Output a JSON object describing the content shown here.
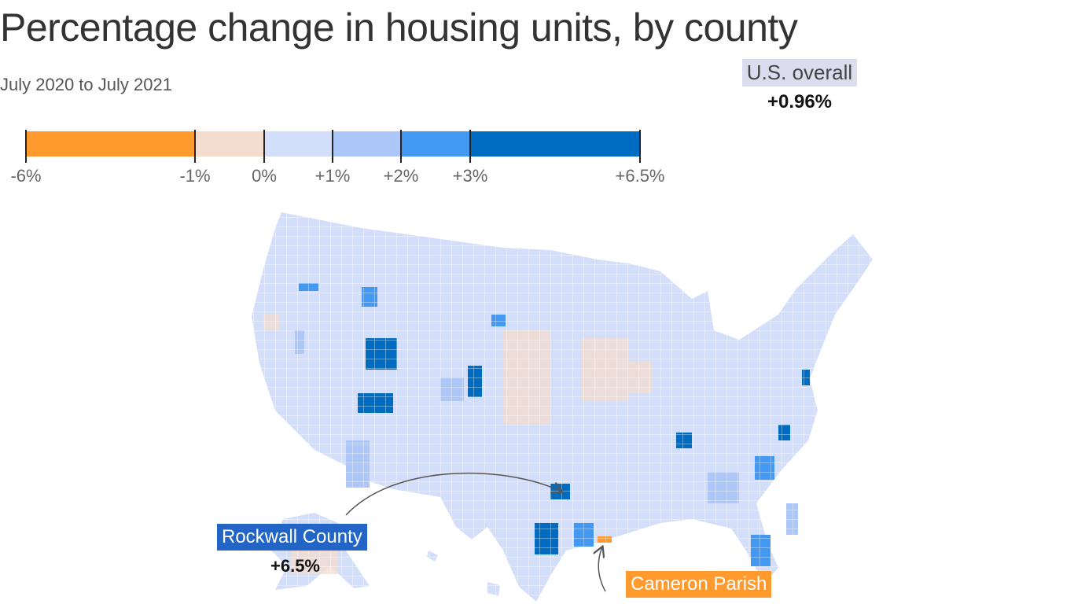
{
  "title": "Percentage change in housing units, by county",
  "subtitle": "July 2020 to July 2021",
  "us_overall": {
    "label": "U.S. overall",
    "value": "+0.96%"
  },
  "legend": {
    "bins": [
      {
        "from": -6,
        "to": -1,
        "color": "#ff9a2e"
      },
      {
        "from": -1,
        "to": 0,
        "color": "#f4dccf"
      },
      {
        "from": 0,
        "to": 1,
        "color": "#d3defa"
      },
      {
        "from": 1,
        "to": 2,
        "color": "#adc8f8"
      },
      {
        "from": 2,
        "to": 3,
        "color": "#4399f2"
      },
      {
        "from": 3,
        "to": 6.5,
        "color": "#006cc1"
      }
    ],
    "tick_labels": [
      "-6%",
      "-1%",
      "0%",
      "+1%",
      "+2%",
      "+3%",
      "+6.5%"
    ]
  },
  "annotations": {
    "rockwall": {
      "label": "Rockwall County",
      "value": "+6.5%"
    },
    "cameron": {
      "label": "Cameron Parish"
    }
  }
}
